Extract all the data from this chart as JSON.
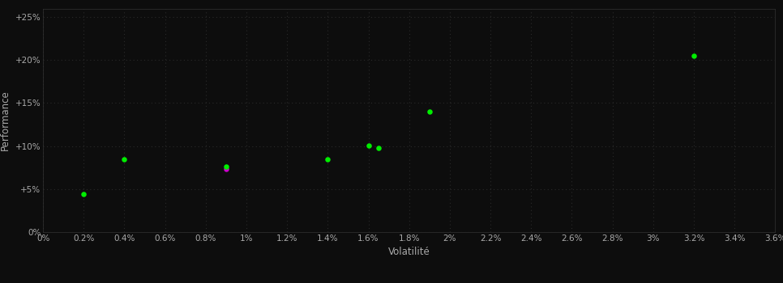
{
  "background_color": "#0d0d0d",
  "plot_bg_color": "#0d0d0d",
  "grid_color": "#2a2a2a",
  "text_color": "#aaaaaa",
  "xlabel": "Volatilité",
  "ylabel": "Performance",
  "xlim": [
    0.0,
    0.036
  ],
  "ylim": [
    0.0,
    0.26
  ],
  "xtick_step": 0.002,
  "ytick_step": 0.05,
  "points_green": [
    [
      0.002,
      0.044
    ],
    [
      0.004,
      0.085
    ],
    [
      0.009,
      0.076
    ],
    [
      0.014,
      0.085
    ],
    [
      0.016,
      0.101
    ],
    [
      0.0165,
      0.098
    ],
    [
      0.019,
      0.14
    ],
    [
      0.032,
      0.205
    ]
  ],
  "points_magenta": [
    [
      0.009,
      0.073
    ]
  ],
  "green_color": "#00ee00",
  "magenta_color": "#cc00cc",
  "marker_size": 22
}
